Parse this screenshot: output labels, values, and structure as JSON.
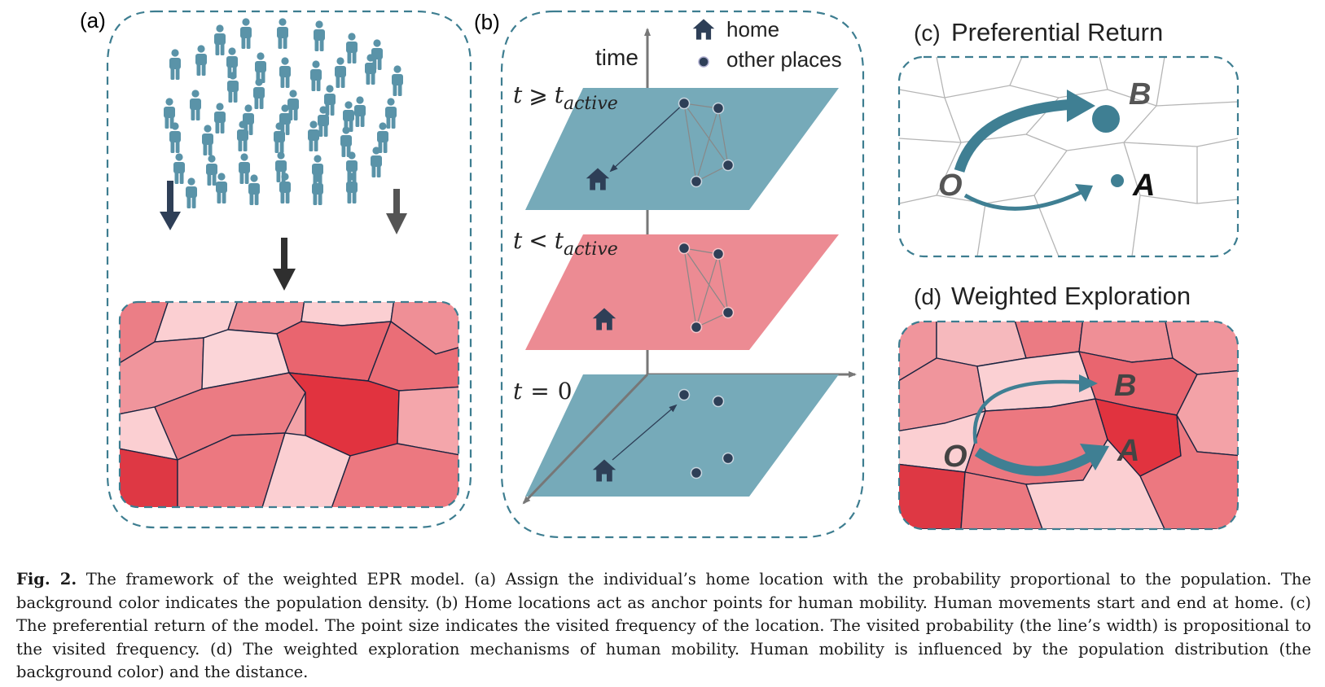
{
  "panels": {
    "a": {
      "label": "(a)"
    },
    "b": {
      "label": "(b)",
      "axis_label": "time",
      "legend": {
        "home": "home",
        "other": "other places"
      },
      "layers": [
        {
          "lhs": "t",
          "op": "⩾",
          "rhs": "t",
          "sub": "active"
        },
        {
          "lhs": "t",
          "op": "<",
          "rhs": "t",
          "sub": "active"
        },
        {
          "lhs": "t",
          "op": "=",
          "rhs": "0",
          "sub": ""
        }
      ]
    },
    "c": {
      "label": "(c)",
      "title": "Preferential Return",
      "points": {
        "o": "O",
        "a": "A",
        "b": "B"
      }
    },
    "d": {
      "label": "(d)",
      "title": "Weighted Exploration",
      "points": {
        "o": "O",
        "a": "A",
        "b": "B"
      }
    }
  },
  "colors": {
    "teal": "#3f7f93",
    "teal_plane": "#76aab9",
    "pink_plane": "#ec8b93",
    "dark": "#2e3f57",
    "dash": "#3d7d90"
  },
  "caption": {
    "fig_label": "Fig. 2.",
    "text": "The framework of the weighted EPR model. (a) Assign the individual’s home location with the probability proportional to the population. The background color indicates the population density. (b) Home locations act as anchor points for human mobility. Human movements start and end at home. (c) The preferential return of the model. The point size indicates the visited frequency of the location. The visited probability (the line’s width) is propositional to the visited frequency. (d) The weighted exploration mechanisms of human mobility. Human mobility is influenced by the population distribution (the background color) and the distance."
  }
}
